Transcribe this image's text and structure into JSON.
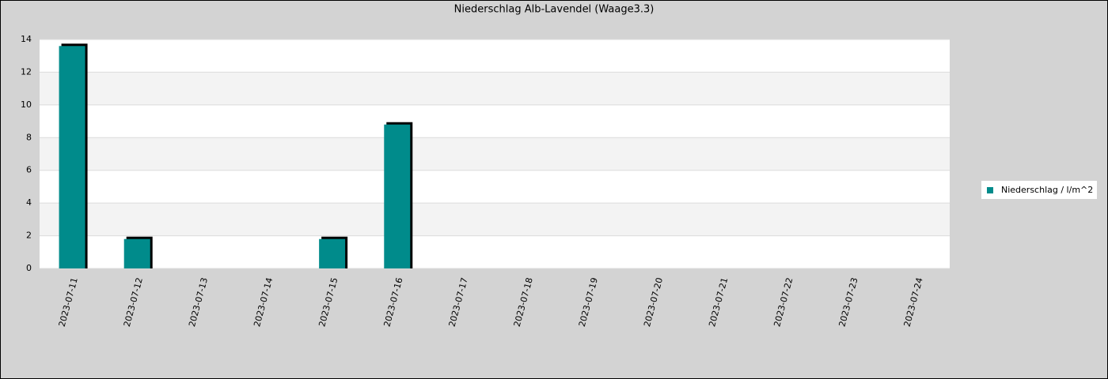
{
  "chart_data": {
    "type": "bar",
    "title": "Niederschlag Alb-Lavendel (Waage3.3)",
    "categories": [
      "2023-07-11",
      "2023-07-12",
      "2023-07-13",
      "2023-07-14",
      "2023-07-15",
      "2023-07-16",
      "2023-07-17",
      "2023-07-18",
      "2023-07-19",
      "2023-07-20",
      "2023-07-21",
      "2023-07-22",
      "2023-07-23",
      "2023-07-24"
    ],
    "series": [
      {
        "name": "Niederschlag / l/m^2",
        "color": "#008b8b",
        "values": [
          13.6,
          1.8,
          0,
          0,
          1.8,
          8.8,
          0,
          0,
          0,
          0,
          0,
          0,
          0,
          0
        ]
      }
    ],
    "ylim": [
      0,
      14
    ],
    "yticks": [
      0,
      2,
      4,
      6,
      8,
      10,
      12,
      14
    ],
    "grid": true,
    "legend": "right"
  }
}
